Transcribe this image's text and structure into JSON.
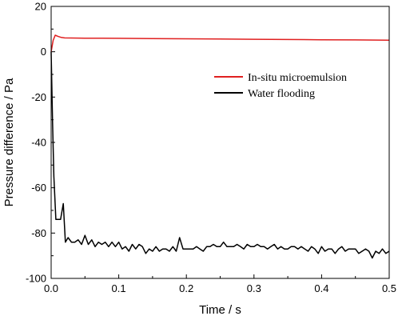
{
  "chart_data": {
    "type": "line",
    "xlabel": "Time / s",
    "ylabel": "Pressure difference / Pa",
    "xlim": [
      0,
      0.5
    ],
    "ylim": [
      -100,
      20
    ],
    "xticks": [
      0,
      0.1,
      0.2,
      0.3,
      0.4,
      0.5
    ],
    "xtick_labels": [
      "0.0",
      "0.1",
      "0.2",
      "0.3",
      "0.4",
      "0.5"
    ],
    "yticks": [
      20,
      0,
      -20,
      -40,
      -60,
      -80,
      -100
    ],
    "ytick_labels": [
      "20",
      "0",
      "-20",
      "-40",
      "-60",
      "-80",
      "-100"
    ],
    "grid": false,
    "legend_position": "upper-right",
    "series": [
      {
        "name": "In-situ microemulsion",
        "color": "#e02020",
        "x": [
          0,
          0.003,
          0.006,
          0.01,
          0.015,
          0.02,
          0.05,
          0.1,
          0.15,
          0.2,
          0.25,
          0.3,
          0.35,
          0.4,
          0.45,
          0.5
        ],
        "y": [
          0,
          5,
          7.3,
          6.8,
          6.3,
          6.1,
          6.0,
          5.9,
          5.8,
          5.7,
          5.6,
          5.5,
          5.4,
          5.3,
          5.2,
          5.1
        ]
      },
      {
        "name": "Water flooding",
        "color": "#000000",
        "x": [
          0,
          0.002,
          0.004,
          0.007,
          0.01,
          0.014,
          0.018,
          0.021,
          0.025,
          0.03,
          0.035,
          0.04,
          0.045,
          0.05,
          0.055,
          0.06,
          0.065,
          0.07,
          0.075,
          0.08,
          0.085,
          0.09,
          0.095,
          0.1,
          0.105,
          0.11,
          0.115,
          0.12,
          0.125,
          0.13,
          0.135,
          0.14,
          0.145,
          0.15,
          0.155,
          0.16,
          0.165,
          0.17,
          0.175,
          0.18,
          0.185,
          0.19,
          0.195,
          0.2,
          0.205,
          0.21,
          0.215,
          0.22,
          0.225,
          0.23,
          0.235,
          0.24,
          0.245,
          0.25,
          0.255,
          0.26,
          0.265,
          0.27,
          0.275,
          0.28,
          0.285,
          0.29,
          0.295,
          0.3,
          0.305,
          0.31,
          0.315,
          0.32,
          0.325,
          0.33,
          0.335,
          0.34,
          0.345,
          0.35,
          0.355,
          0.36,
          0.365,
          0.37,
          0.375,
          0.38,
          0.385,
          0.39,
          0.395,
          0.4,
          0.405,
          0.41,
          0.415,
          0.42,
          0.425,
          0.43,
          0.435,
          0.44,
          0.445,
          0.45,
          0.455,
          0.46,
          0.465,
          0.47,
          0.475,
          0.48,
          0.485,
          0.49,
          0.495,
          0.5
        ],
        "y": [
          0,
          -30,
          -55,
          -74,
          -74,
          -74,
          -67,
          -84,
          -82,
          -84,
          -84,
          -83,
          -85,
          -81,
          -85,
          -83,
          -86,
          -84,
          -85,
          -84,
          -86,
          -84,
          -86,
          -84,
          -87,
          -86,
          -88,
          -85,
          -87,
          -85,
          -86,
          -89,
          -87,
          -88,
          -86,
          -88,
          -87,
          -87,
          -88,
          -86,
          -88,
          -82,
          -87,
          -87,
          -87,
          -87,
          -86,
          -87,
          -88,
          -86,
          -86,
          -85,
          -86,
          -86,
          -84,
          -86,
          -86,
          -86,
          -85,
          -86,
          -87,
          -85,
          -86,
          -86,
          -85,
          -86,
          -86,
          -87,
          -86,
          -85,
          -87,
          -86,
          -87,
          -87,
          -86,
          -86,
          -87,
          -86,
          -87,
          -88,
          -86,
          -87,
          -89,
          -86,
          -88,
          -87,
          -87,
          -89,
          -87,
          -86,
          -88,
          -87,
          -87,
          -87,
          -89,
          -88,
          -87,
          -88,
          -91,
          -88,
          -89,
          -87,
          -89,
          -88
        ]
      }
    ]
  }
}
